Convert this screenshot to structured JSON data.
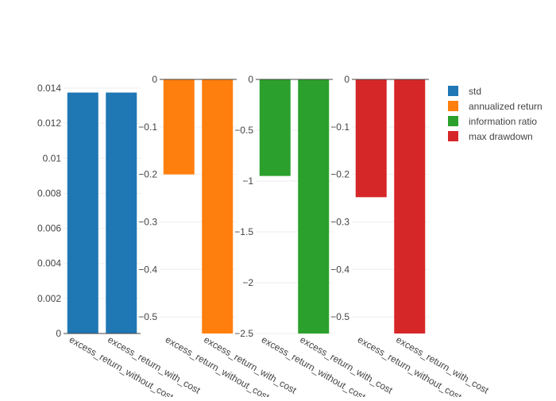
{
  "chart_data": {
    "type": "bar",
    "layout": "subplots",
    "categories": [
      "excess_return_without_cost",
      "excess_return_with_cost"
    ],
    "panels": [
      {
        "series": "std",
        "color": "#1f77b4",
        "values": [
          0.01375,
          0.01375
        ],
        "ylim": [
          0,
          0.0145
        ],
        "yticks": [
          0,
          0.002,
          0.004,
          0.006,
          0.008,
          0.01,
          0.012,
          0.014
        ],
        "ytick_labels": [
          "0",
          "0.002",
          "0.004",
          "0.006",
          "0.008",
          "0.01",
          "0.012",
          "0.014"
        ]
      },
      {
        "series": "annualized return",
        "color": "#ff7f0e",
        "values": [
          -0.2,
          -0.535
        ],
        "ylim": [
          -0.535,
          0
        ],
        "yticks": [
          0,
          -0.1,
          -0.2,
          -0.3,
          -0.4,
          -0.5
        ],
        "ytick_labels": [
          "0",
          "−0.1",
          "−0.2",
          "−0.3",
          "−0.4",
          "−0.5"
        ]
      },
      {
        "series": "information ratio",
        "color": "#2ca02c",
        "values": [
          -0.95,
          -2.5
        ],
        "ylim": [
          -2.5,
          0
        ],
        "yticks": [
          0,
          -0.5,
          -1,
          -1.5,
          -2,
          -2.5
        ],
        "ytick_labels": [
          "0",
          "−0.5",
          "−1",
          "−1.5",
          "−2",
          "−2.5"
        ]
      },
      {
        "series": "max drawdown",
        "color": "#d62728",
        "values": [
          -0.248,
          -0.535
        ],
        "ylim": [
          -0.535,
          0
        ],
        "yticks": [
          0,
          -0.1,
          -0.2,
          -0.3,
          -0.4,
          -0.5
        ],
        "ytick_labels": [
          "0",
          "−0.1",
          "−0.2",
          "−0.3",
          "−0.4",
          "−0.5"
        ]
      }
    ],
    "legend": {
      "position": "top-right",
      "entries": [
        {
          "name": "std",
          "color": "#1f77b4"
        },
        {
          "name": "annualized return",
          "color": "#ff7f0e"
        },
        {
          "name": "information ratio",
          "color": "#2ca02c"
        },
        {
          "name": "max drawdown",
          "color": "#d62728"
        }
      ]
    },
    "title": "",
    "xlabel": "",
    "ylabel": "",
    "grid": true
  }
}
